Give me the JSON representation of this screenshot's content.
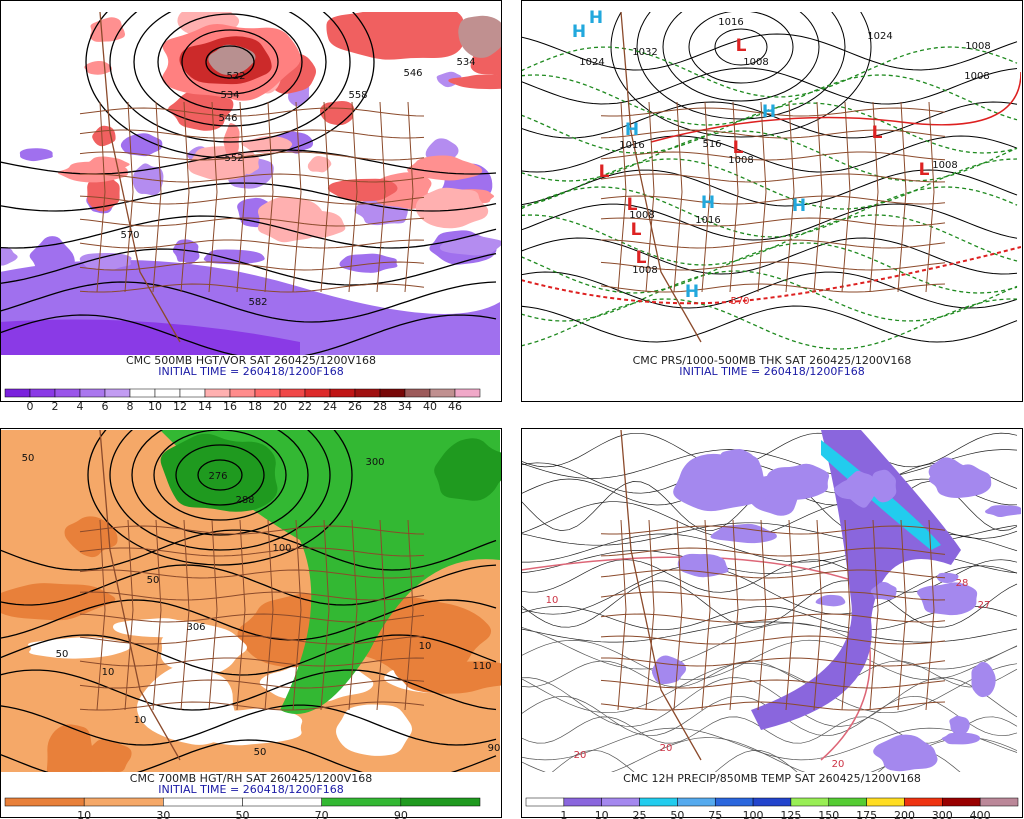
{
  "panels": [
    {
      "caption": "CMC 500MB HGT/VOR SAT 260425/1200V168",
      "initial_time": "INITIAL TIME = 260418/1200F168",
      "colorbar": {
        "colors": [
          "#7a22dd",
          "#8a3ae6",
          "#9a55ea",
          "#aa77ee",
          "#c29cf2",
          "#ffffff",
          "#ffffff",
          "#ffffff",
          "#ffb0b0",
          "#ff8c8c",
          "#ff6a6a",
          "#f04848",
          "#dd2a2a",
          "#c01515",
          "#a01010",
          "#780808",
          "#9c5a5a",
          "#c09090",
          "#f0a8c8"
        ],
        "labels": [
          "0",
          "2",
          "4",
          "6",
          "8",
          "10",
          "12",
          "14",
          "16",
          "18",
          "20",
          "22",
          "24",
          "26",
          "28",
          "34",
          "40",
          "46"
        ]
      },
      "map_labels": [
        "522",
        "534",
        "546",
        "552",
        "558",
        "546",
        "534",
        "570",
        "582"
      ]
    },
    {
      "caption": "CMC PRS/1000-500MB THK SAT 260425/1200V168",
      "initial_time": "INITIAL TIME = 260418/1200F168",
      "map_labels": [
        "1024",
        "1032",
        "1016",
        "1008",
        "1024",
        "1008",
        "1008",
        "516",
        "1008",
        "1016",
        "1008",
        "1016",
        "1008",
        "570",
        "1008",
        "H",
        "H",
        "H",
        "H",
        "H",
        "H",
        "H",
        "L",
        "L",
        "L",
        "L",
        "L",
        "L",
        "L",
        "L"
      ]
    },
    {
      "caption": "CMC 700MB HGT/RH SAT 260425/1200V168",
      "initial_time": "INITIAL TIME = 260418/1200F168",
      "colorbar": {
        "colors": [
          "#e8803a",
          "#f5a868",
          "#ffffff",
          "#ffffff",
          "#33b833",
          "#1f9a1f"
        ],
        "labels": [
          "10",
          "30",
          "50",
          "70",
          "90"
        ]
      },
      "map_labels": [
        "276",
        "288",
        "300",
        "50",
        "50",
        "306",
        "50",
        "100",
        "10",
        "10",
        "10",
        "110",
        "50",
        "90"
      ]
    },
    {
      "caption": "CMC 12H PRECIP/850MB TEMP SAT 260425/1200V168",
      "colorbar": {
        "colors": [
          "#ffffff",
          "#8a66dd",
          "#a488ee",
          "#22ccee",
          "#55aaee",
          "#2a66dd",
          "#2244cc",
          "#99ee55",
          "#55cc33",
          "#ffdd22",
          "#ee3311",
          "#990000",
          "#bb8899"
        ],
        "labels": [
          "1",
          "10",
          "25",
          "50",
          "75",
          "100",
          "125",
          "150",
          "175",
          "200",
          "300",
          "400"
        ]
      },
      "map_labels": [
        "20",
        "20",
        "20",
        "28",
        "27",
        "10"
      ]
    }
  ]
}
